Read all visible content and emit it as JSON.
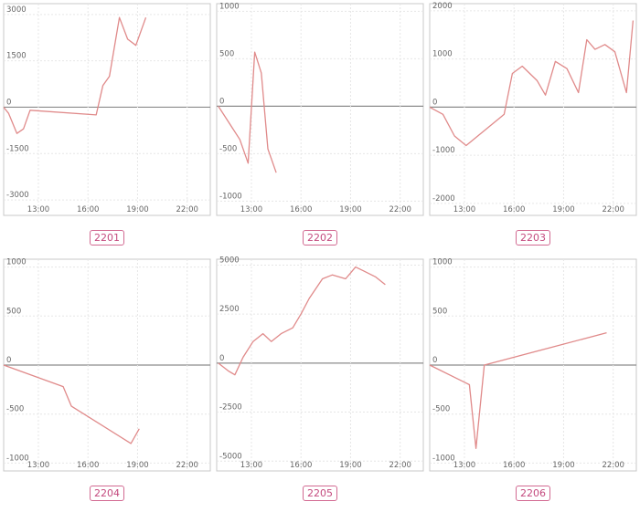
{
  "colors": {
    "line": "#e08a8a",
    "badge": "#c44a7e"
  },
  "chart_data": [
    {
      "type": "line",
      "code": "2201",
      "xlim": [
        10.9,
        23.4
      ],
      "ylim": [
        -3500,
        3350
      ],
      "yticks": [
        {
          "v": 3000,
          "label": "3000"
        },
        {
          "v": 1500,
          "label": "1500"
        },
        {
          "v": 0,
          "label": "0"
        },
        {
          "v": -1500,
          "label": "-1500"
        },
        {
          "v": -3000,
          "label": "-3000"
        }
      ],
      "xticks": [
        {
          "v": 13,
          "label": "13:00"
        },
        {
          "v": 16,
          "label": "16:00"
        },
        {
          "v": 19,
          "label": "19:00"
        },
        {
          "v": 22,
          "label": "22:00"
        }
      ],
      "x": [
        10.9,
        11.2,
        11.7,
        12.1,
        12.5,
        16.5,
        16.9,
        17.3,
        17.9,
        18.4,
        18.9,
        19.5
      ],
      "y": [
        0,
        -200,
        -850,
        -700,
        -100,
        -250,
        700,
        1000,
        2900,
        2200,
        2000,
        2900
      ]
    },
    {
      "type": "line",
      "code": "2202",
      "xlim": [
        10.9,
        23.4
      ],
      "ylim": [
        -1150,
        1080
      ],
      "yticks": [
        {
          "v": 1000,
          "label": "1000"
        },
        {
          "v": 500,
          "label": "500"
        },
        {
          "v": 0,
          "label": "0"
        },
        {
          "v": -500,
          "label": "-500"
        },
        {
          "v": -1000,
          "label": "-1000"
        }
      ],
      "xticks": [
        {
          "v": 13,
          "label": "13:00"
        },
        {
          "v": 16,
          "label": "16:00"
        },
        {
          "v": 19,
          "label": "19:00"
        },
        {
          "v": 22,
          "label": "22:00"
        }
      ],
      "x": [
        11.0,
        12.3,
        12.8,
        13.2,
        13.6,
        14.0,
        14.5
      ],
      "y": [
        0,
        -350,
        -600,
        570,
        350,
        -450,
        -700
      ]
    },
    {
      "type": "line",
      "code": "2203",
      "xlim": [
        10.9,
        23.4
      ],
      "ylim": [
        -2250,
        2150
      ],
      "yticks": [
        {
          "v": 2000,
          "label": "2000"
        },
        {
          "v": 1000,
          "label": "1000"
        },
        {
          "v": 0,
          "label": "0"
        },
        {
          "v": -1000,
          "label": "-1000"
        },
        {
          "v": -2000,
          "label": "-2000"
        }
      ],
      "xticks": [
        {
          "v": 13,
          "label": "13:00"
        },
        {
          "v": 16,
          "label": "16:00"
        },
        {
          "v": 19,
          "label": "19:00"
        },
        {
          "v": 22,
          "label": "22:00"
        }
      ],
      "x": [
        10.9,
        11.7,
        12.4,
        13.1,
        15.4,
        15.9,
        16.5,
        17.4,
        17.9,
        18.5,
        19.2,
        19.9,
        20.4,
        20.9,
        21.5,
        22.1,
        22.8,
        23.2
      ],
      "y": [
        0,
        -150,
        -600,
        -800,
        -150,
        700,
        850,
        550,
        250,
        950,
        800,
        300,
        1400,
        1200,
        1300,
        1150,
        300,
        1800
      ]
    },
    {
      "type": "line",
      "code": "2204",
      "xlim": [
        10.9,
        23.4
      ],
      "ylim": [
        -1080,
        1080
      ],
      "yticks": [
        {
          "v": 1000,
          "label": "1000"
        },
        {
          "v": 500,
          "label": "500"
        },
        {
          "v": 0,
          "label": "0"
        },
        {
          "v": -500,
          "label": "-500"
        },
        {
          "v": -1000,
          "label": "-1000"
        }
      ],
      "xticks": [
        {
          "v": 13,
          "label": "13:00"
        },
        {
          "v": 16,
          "label": "16:00"
        },
        {
          "v": 19,
          "label": "19:00"
        },
        {
          "v": 22,
          "label": "22:00"
        }
      ],
      "x": [
        10.9,
        14.5,
        15.0,
        18.6,
        19.1
      ],
      "y": [
        0,
        -220,
        -420,
        -800,
        -650
      ]
    },
    {
      "type": "line",
      "code": "2205",
      "xlim": [
        10.9,
        23.4
      ],
      "ylim": [
        -5500,
        5300
      ],
      "yticks": [
        {
          "v": 5000,
          "label": "5000"
        },
        {
          "v": 2500,
          "label": "2500"
        },
        {
          "v": 0,
          "label": "0"
        },
        {
          "v": -2500,
          "label": "-2500"
        },
        {
          "v": -5000,
          "label": "-5000"
        }
      ],
      "xticks": [
        {
          "v": 13,
          "label": "13:00"
        },
        {
          "v": 16,
          "label": "16:00"
        },
        {
          "v": 19,
          "label": "19:00"
        },
        {
          "v": 22,
          "label": "22:00"
        }
      ],
      "x": [
        11.0,
        11.6,
        12.0,
        12.5,
        13.1,
        13.7,
        14.2,
        14.8,
        15.5,
        16.0,
        16.5,
        17.3,
        17.9,
        18.7,
        19.3,
        19.8,
        20.5,
        21.1
      ],
      "y": [
        0,
        -400,
        -600,
        300,
        1100,
        1500,
        1100,
        1500,
        1800,
        2500,
        3300,
        4300,
        4500,
        4300,
        4900,
        4700,
        4400,
        4000
      ]
    },
    {
      "type": "line",
      "code": "2206",
      "xlim": [
        10.9,
        23.4
      ],
      "ylim": [
        -1080,
        1080
      ],
      "yticks": [
        {
          "v": 1000,
          "label": "1000"
        },
        {
          "v": 500,
          "label": "500"
        },
        {
          "v": 0,
          "label": "0"
        },
        {
          "v": -500,
          "label": "-500"
        },
        {
          "v": -1000,
          "label": "-1000"
        }
      ],
      "xticks": [
        {
          "v": 13,
          "label": "13:00"
        },
        {
          "v": 16,
          "label": "16:00"
        },
        {
          "v": 19,
          "label": "19:00"
        },
        {
          "v": 22,
          "label": "22:00"
        }
      ],
      "x": [
        10.9,
        13.3,
        13.7,
        14.2,
        21.6
      ],
      "y": [
        0,
        -200,
        -850,
        0,
        330
      ]
    }
  ]
}
